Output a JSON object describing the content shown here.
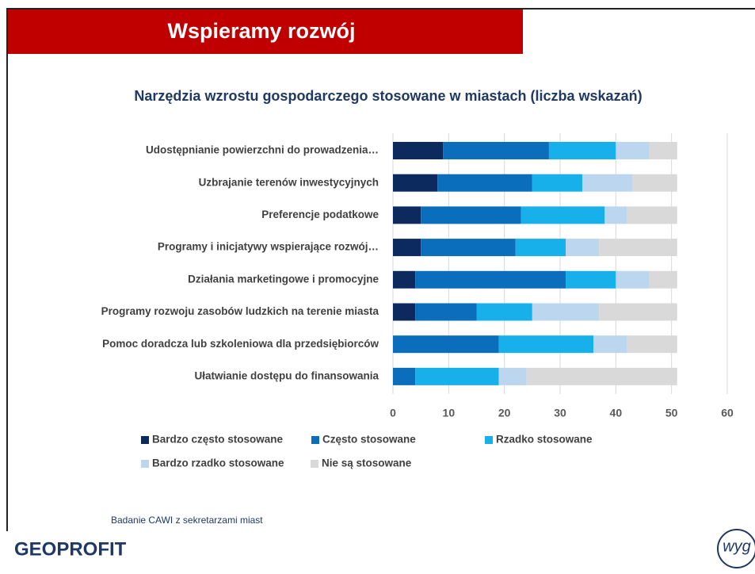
{
  "header": {
    "title": "Wspieramy rozwój"
  },
  "chart_data": {
    "type": "stacked-barh",
    "title": "Narzędzia wzrostu gospodarczego stosowane w miastach (liczba wskazań)",
    "categories": [
      "Udostępnianie powierzchni do prowadzenia…",
      "Uzbrajanie terenów inwestycyjnych",
      "Preferencje podatkowe",
      "Programy i inicjatywy wspierające rozwój…",
      "Działania marketingowe i promocyjne",
      "Programy rozwoju zasobów ludzkich na terenie miasta",
      "Pomoc doradcza lub szkoleniowa dla przedsiębiorców",
      "Ułatwianie dostępu do finansowania"
    ],
    "series": [
      {
        "name": "Bardzo często stosowane",
        "color": "#0d2a5e",
        "values": [
          9,
          8,
          5,
          5,
          4,
          4,
          0,
          0
        ]
      },
      {
        "name": "Często stosowane",
        "color": "#0a6ebd",
        "values": [
          19,
          17,
          18,
          17,
          27,
          11,
          19,
          4
        ]
      },
      {
        "name": "Rzadko stosowane",
        "color": "#17b0ea",
        "values": [
          12,
          9,
          15,
          9,
          9,
          10,
          17,
          15
        ]
      },
      {
        "name": "Bardzo rzadko stosowane",
        "color": "#bcd6ef",
        "values": [
          6,
          9,
          4,
          6,
          6,
          12,
          6,
          5
        ]
      },
      {
        "name": "Nie są stosowane",
        "color": "#d9d9d9",
        "values": [
          5,
          8,
          9,
          14,
          5,
          14,
          9,
          27
        ]
      }
    ],
    "xlim": [
      0,
      60
    ],
    "xticks": [
      0,
      10,
      20,
      30,
      40,
      50,
      60
    ],
    "grid": true,
    "legend": "bottom"
  },
  "source": "Badanie CAWI z sekretarzami miast",
  "logos": {
    "left": "GEOPROFIT",
    "right": "wyg"
  }
}
